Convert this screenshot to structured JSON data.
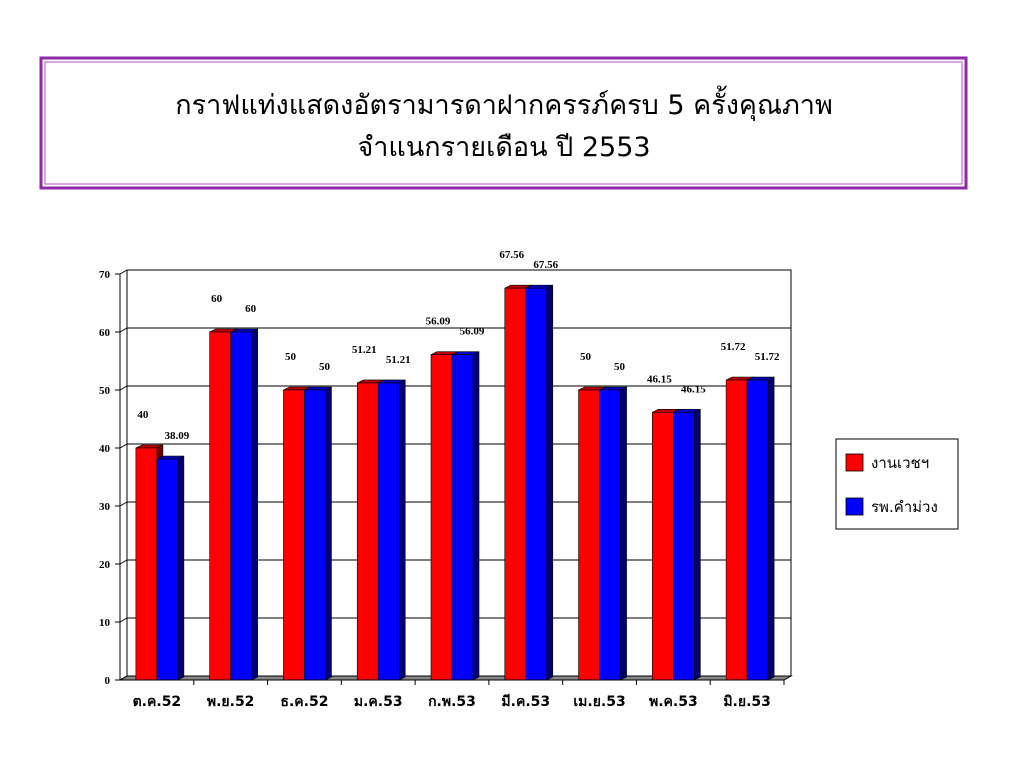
{
  "chart_data": {
    "type": "bar3d",
    "title": [
      "กราฟแท่งแสดงอัตรามารดาฝากครรภ์ครบ 5 ครั้งคุณภาพ",
      "จำแนกรายเดือน ปี 2553"
    ],
    "categories": [
      "ต.ค.52",
      "พ.ย.52",
      "ธ.ค.52",
      "ม.ค.53",
      "ก.พ.53",
      "มี.ค.53",
      "เม.ย.53",
      "พ.ค.53",
      "มิ.ย.53"
    ],
    "series": [
      {
        "name": "งานเวชฯ",
        "color": "#ff0000",
        "values": [
          40,
          60,
          50,
          51.21,
          56.09,
          67.56,
          50,
          46.15,
          51.72
        ]
      },
      {
        "name": "รพ.คำม่วง",
        "color": "#0000ff",
        "values": [
          38.09,
          60,
          50,
          51.21,
          56.09,
          67.56,
          50,
          46.15,
          51.72
        ]
      }
    ],
    "ylim": [
      0,
      70
    ],
    "yticks": [
      0,
      10,
      20,
      30,
      40,
      50,
      60,
      70
    ],
    "grid": true,
    "legend": "right"
  }
}
